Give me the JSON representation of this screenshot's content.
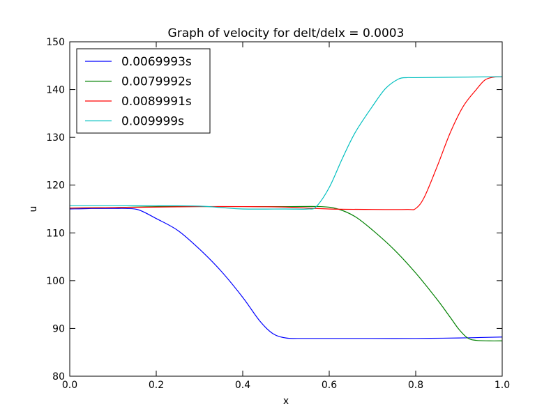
{
  "chart_data": {
    "type": "line",
    "title": "Graph of velocity for delt/delx = 0.0003",
    "xlabel": "x",
    "ylabel": "u",
    "xlim": [
      0.0,
      1.0
    ],
    "ylim": [
      80,
      150
    ],
    "xticks": [
      "0.0",
      "0.2",
      "0.4",
      "0.6",
      "0.8",
      "1.0"
    ],
    "yticks": [
      "80",
      "90",
      "100",
      "110",
      "120",
      "130",
      "140",
      "150"
    ],
    "grid": false,
    "legend_position": "top-left",
    "series": [
      {
        "name": "0.0069993s",
        "color": "#0000ff",
        "x": [
          0.0,
          0.05,
          0.1,
          0.13,
          0.16,
          0.2,
          0.25,
          0.3,
          0.35,
          0.4,
          0.44,
          0.47,
          0.5,
          0.53,
          0.6,
          0.7,
          0.8,
          0.9,
          0.95,
          1.0
        ],
        "y": [
          115.0,
          115.1,
          115.1,
          115.1,
          114.8,
          113.0,
          110.5,
          106.6,
          102.0,
          96.5,
          91.5,
          88.9,
          88.0,
          87.9,
          87.9,
          87.9,
          87.9,
          88.0,
          88.1,
          88.2
        ]
      },
      {
        "name": "0.0079992s",
        "color": "#008000",
        "x": [
          0.0,
          0.1,
          0.2,
          0.3,
          0.4,
          0.5,
          0.58,
          0.62,
          0.66,
          0.7,
          0.75,
          0.8,
          0.85,
          0.88,
          0.9,
          0.92,
          0.94,
          0.97,
          1.0
        ],
        "y": [
          115.2,
          115.3,
          115.5,
          115.5,
          115.5,
          115.5,
          115.5,
          115.0,
          113.4,
          110.6,
          106.5,
          101.6,
          96.0,
          92.3,
          89.8,
          88.0,
          87.5,
          87.4,
          87.4
        ]
      },
      {
        "name": "0.0089991s",
        "color": "#ff0000",
        "x": [
          0.0,
          0.1,
          0.2,
          0.3,
          0.4,
          0.5,
          0.6,
          0.7,
          0.78,
          0.8,
          0.82,
          0.85,
          0.88,
          0.91,
          0.94,
          0.96,
          0.98,
          1.0
        ],
        "y": [
          115.2,
          115.3,
          115.4,
          115.5,
          115.5,
          115.4,
          115.0,
          114.9,
          114.9,
          115.1,
          117.5,
          124.0,
          131.0,
          136.5,
          140.0,
          142.0,
          142.6,
          142.7
        ]
      },
      {
        "name": "0.009999s",
        "color": "#00bfbf",
        "x": [
          0.0,
          0.1,
          0.2,
          0.3,
          0.35,
          0.4,
          0.5,
          0.55,
          0.57,
          0.6,
          0.63,
          0.66,
          0.7,
          0.73,
          0.76,
          0.78,
          0.8,
          0.9,
          1.0
        ],
        "y": [
          115.7,
          115.7,
          115.7,
          115.6,
          115.3,
          115.0,
          115.0,
          115.0,
          115.5,
          119.5,
          125.5,
          131.0,
          136.5,
          140.2,
          142.2,
          142.5,
          142.5,
          142.6,
          142.7
        ]
      }
    ]
  }
}
